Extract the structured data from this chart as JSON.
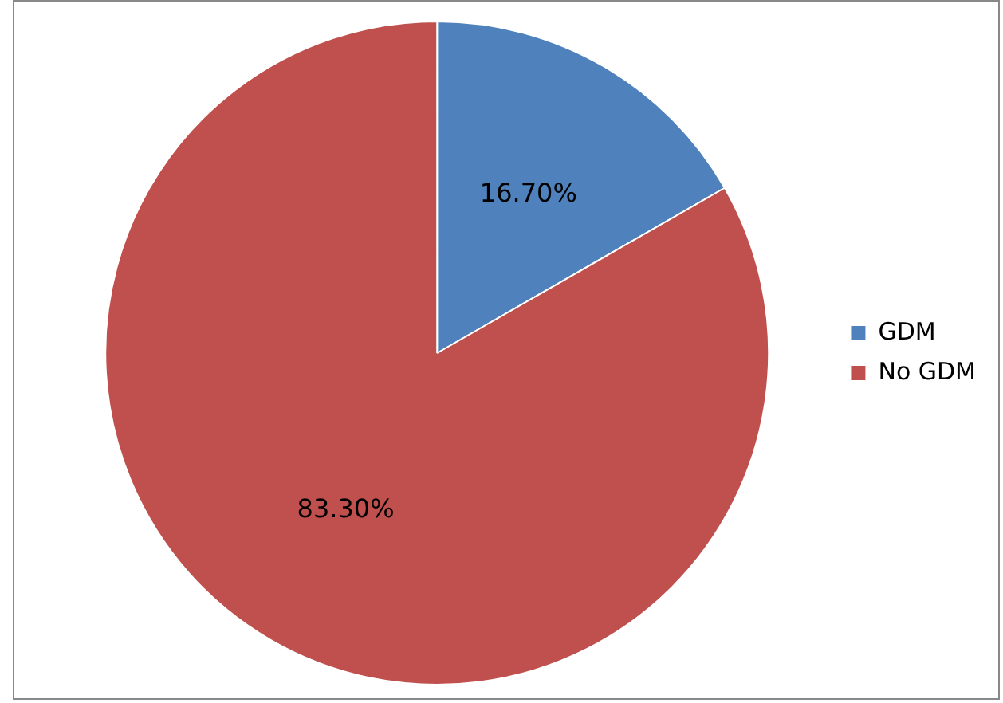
{
  "chart_data": {
    "type": "pie",
    "categories": [
      "GDM",
      "No GDM"
    ],
    "values": [
      16.7,
      83.3
    ],
    "colors": [
      "#4f81bd",
      "#c0504d"
    ],
    "value_labels": [
      "16.70%",
      "83.30%"
    ],
    "legend": "right"
  }
}
